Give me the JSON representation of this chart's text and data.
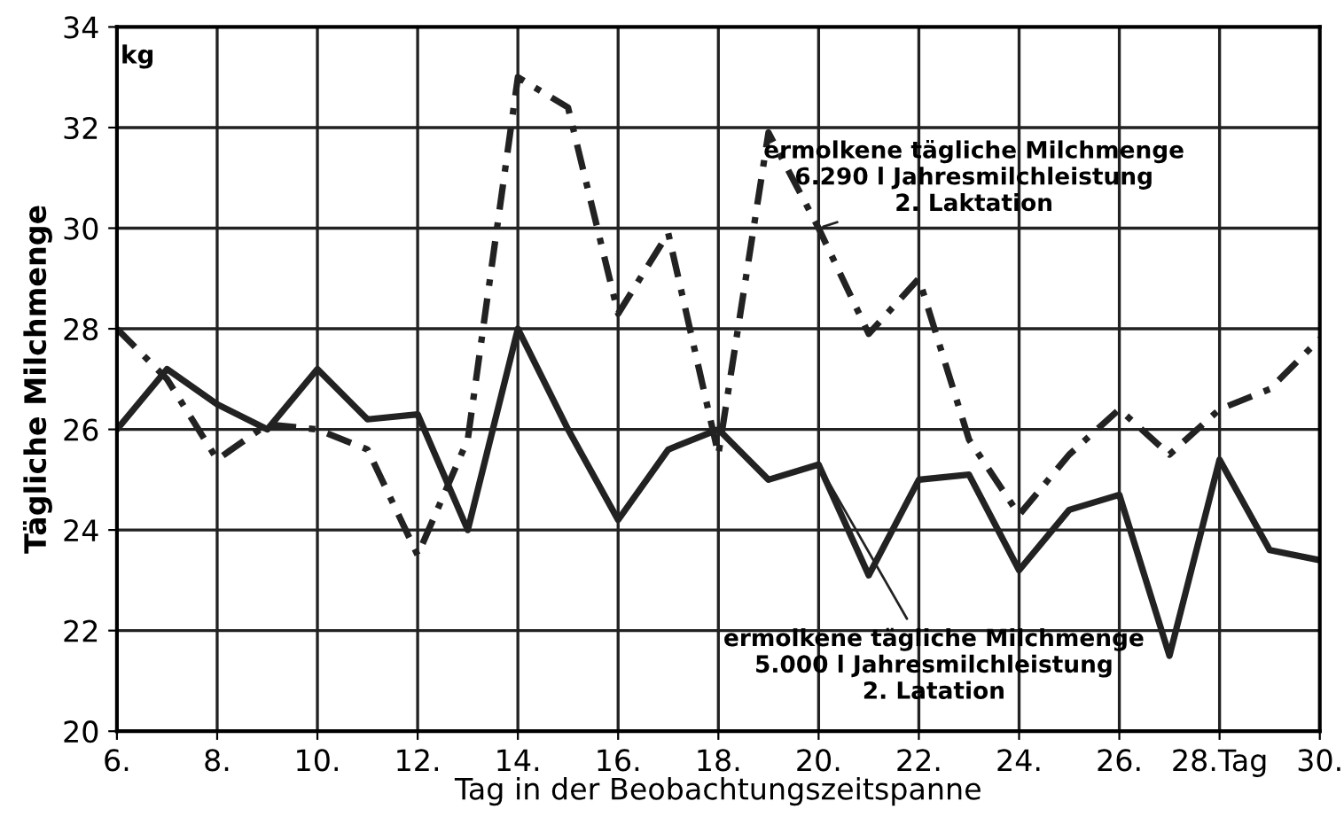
{
  "chart_data": {
    "type": "line",
    "xlabel": "Tag in der Beobachtungszeitspanne",
    "ylabel": "Tägliche Milchmenge",
    "x": [
      6,
      7,
      8,
      9,
      10,
      11,
      12,
      13,
      14,
      15,
      16,
      17,
      18,
      19,
      20,
      21,
      22,
      23,
      24,
      25,
      26,
      27,
      28,
      29,
      30
    ],
    "series": [
      {
        "color": "#222222",
        "line_style": "solid",
        "values": [
          26.0,
          27.2,
          26.5,
          26.0,
          27.2,
          26.2,
          26.3,
          24.0,
          28.0,
          26.0,
          24.2,
          25.6,
          26.0,
          25.0,
          25.3,
          23.1,
          25.0,
          25.1,
          23.2,
          24.4,
          24.7,
          21.5,
          25.4,
          23.6,
          23.4
        ]
      },
      {
        "color": "#222222",
        "line_style": "dashed",
        "values": [
          28.0,
          27.0,
          25.4,
          26.1,
          26.0,
          25.6,
          23.5,
          25.8,
          33.0,
          32.4,
          28.3,
          29.9,
          25.5,
          31.9,
          30.0,
          27.9,
          29.0,
          25.8,
          24.3,
          25.5,
          26.4,
          25.5,
          26.4,
          26.8,
          27.8
        ]
      }
    ],
    "xlim": [
      6,
      30
    ],
    "ylim": [
      20,
      34
    ],
    "xticks": [
      {
        "value": 6,
        "label": "6."
      },
      {
        "value": 8,
        "label": "8."
      },
      {
        "value": 10,
        "label": "10."
      },
      {
        "value": 12,
        "label": "12."
      },
      {
        "value": 14,
        "label": "14."
      },
      {
        "value": 16,
        "label": "16."
      },
      {
        "value": 18,
        "label": "18."
      },
      {
        "value": 20,
        "label": "20."
      },
      {
        "value": 22,
        "label": "22."
      },
      {
        "value": 24,
        "label": "24."
      },
      {
        "value": 26,
        "label": "26."
      },
      {
        "value": 28,
        "label": "28.Tag"
      },
      {
        "value": 30,
        "label": "30."
      }
    ],
    "yticks": [
      20,
      22,
      24,
      26,
      28,
      30,
      32,
      34
    ],
    "grid": true,
    "legend": false,
    "marker": "none",
    "annotations": [
      "kg",
      {
        "text": "ermolkene tägliche Milchmenge\n6.290 l Jahresmilchleistung\n2. Laktation",
        "x": 20,
        "y": 30.0
      },
      {
        "text": "ermolkene tägliche Milchmenge\n5.000 l Jahresmilchleistung\n2. Latation",
        "x": 20,
        "y": 25.3
      }
    ]
  }
}
